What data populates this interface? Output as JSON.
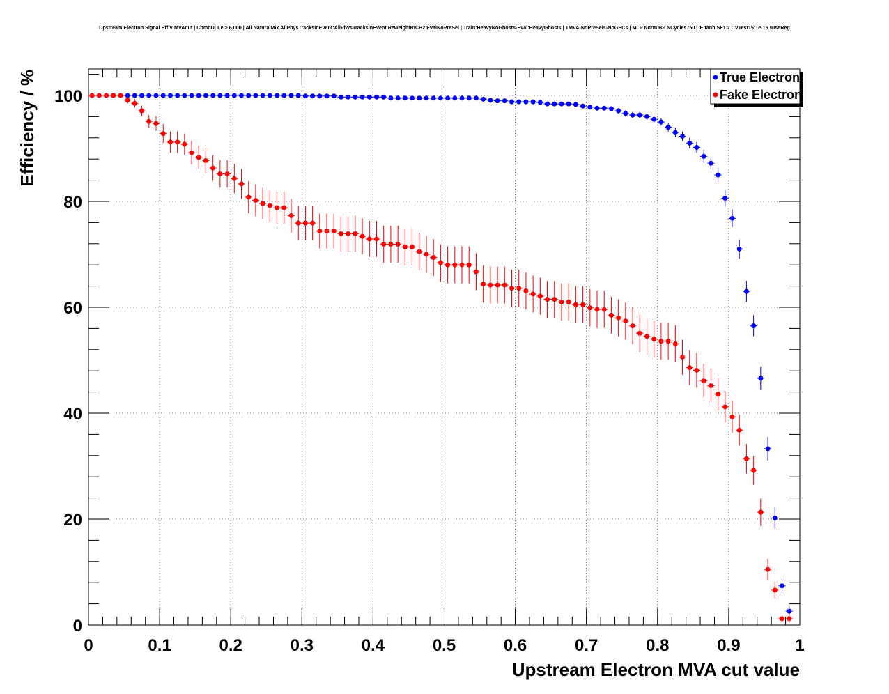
{
  "chart_data": {
    "type": "scatter",
    "title": "Upstream Electron Signal Eff V MVAcut | CombDLLe > 6.000 | All NaturalMix AllPhysTracksInEvent:AllPhysTracksInEvent ReweightRICH2 EvalNoPreSel | Train:HeavyNoGhosts-Eval:HeavyGhosts | TMVA-NoPreSels-NoGECs | MLP Norm BP NCycles750 CE tanh SF1.2 CVTest15:1e-16 !UseReg",
    "xlabel": "Upstream Electron MVA cut value",
    "ylabel": "Efficiency / %",
    "xlim": [
      0,
      1
    ],
    "ylim": [
      0,
      105
    ],
    "grid": true,
    "legend_position": "top-right",
    "x_ticks": [
      "0",
      "0.1",
      "0.2",
      "0.3",
      "0.4",
      "0.5",
      "0.6",
      "0.7",
      "0.8",
      "0.9",
      "1"
    ],
    "y_ticks": [
      "0",
      "20",
      "40",
      "60",
      "80",
      "100"
    ],
    "x_bin_start": 0.005,
    "x_bin_step": 0.01,
    "series": [
      {
        "name": "True Electron",
        "color": "#0000ff",
        "values": [
          100,
          100,
          100,
          100,
          100,
          100,
          100,
          100,
          100,
          100,
          100,
          100,
          100,
          100,
          100,
          100,
          100,
          100,
          100,
          100,
          100,
          100,
          100,
          100,
          100,
          100,
          100,
          100,
          100,
          100,
          99.9,
          99.9,
          99.9,
          99.9,
          99.9,
          99.7,
          99.7,
          99.7,
          99.7,
          99.7,
          99.7,
          99.7,
          99.5,
          99.5,
          99.5,
          99.5,
          99.5,
          99.5,
          99.5,
          99.5,
          99.5,
          99.5,
          99.5,
          99.5,
          99.5,
          99.3,
          99.1,
          99.0,
          99.0,
          98.8,
          98.8,
          98.8,
          98.8,
          98.7,
          98.4,
          98.4,
          98.4,
          98.4,
          98.3,
          98.0,
          97.8,
          97.6,
          97.6,
          97.5,
          97.1,
          96.6,
          96.3,
          96.3,
          96.0,
          95.5,
          95.0,
          94.0,
          93.0,
          92.3,
          91.0,
          90.2,
          88.5,
          87.2,
          85.0,
          80.6,
          76.8,
          71.0,
          63.0,
          56.5,
          46.6,
          33.3,
          20.2,
          7.4,
          2.6
        ],
        "errors": [
          0,
          0,
          0,
          0,
          0,
          0.2,
          0.2,
          0.2,
          0.2,
          0.2,
          0.2,
          0.2,
          0.2,
          0.2,
          0.2,
          0.2,
          0.2,
          0.2,
          0.2,
          0.2,
          0.2,
          0.2,
          0.2,
          0.2,
          0.2,
          0.2,
          0.2,
          0.2,
          0.2,
          0.2,
          0.2,
          0.2,
          0.2,
          0.2,
          0.2,
          0.2,
          0.2,
          0.2,
          0.2,
          0.2,
          0.2,
          0.2,
          0.2,
          0.2,
          0.2,
          0.2,
          0.2,
          0.2,
          0.2,
          0.2,
          0.2,
          0.2,
          0.2,
          0.2,
          0.2,
          0.3,
          0.3,
          0.3,
          0.3,
          0.3,
          0.3,
          0.3,
          0.3,
          0.3,
          0.4,
          0.4,
          0.4,
          0.4,
          0.4,
          0.4,
          0.4,
          0.4,
          0.4,
          0.4,
          0.5,
          0.6,
          0.6,
          0.6,
          0.6,
          0.7,
          0.7,
          0.8,
          0.9,
          0.9,
          1.0,
          1.0,
          1.2,
          1.2,
          1.4,
          1.6,
          1.7,
          1.8,
          2.0,
          2.0,
          2.2,
          2.2,
          2.0,
          1.4,
          0.9
        ]
      },
      {
        "name": "Fake Electron",
        "color": "#ff0000",
        "values": [
          100,
          100,
          100,
          100,
          100,
          99.1,
          98.5,
          97.1,
          95.1,
          94.7,
          92.8,
          91.2,
          91.2,
          90.8,
          89.2,
          88.3,
          87.7,
          86.3,
          85.2,
          85.2,
          84.3,
          83.3,
          80.8,
          80.2,
          79.6,
          79.2,
          78.8,
          78.8,
          77.3,
          75.9,
          75.9,
          75.9,
          74.4,
          74.4,
          74.4,
          73.9,
          73.9,
          73.9,
          73.4,
          72.9,
          72.9,
          71.9,
          71.9,
          71.9,
          71.4,
          71.4,
          70.5,
          70.0,
          69.4,
          68.4,
          68.0,
          68.0,
          68.0,
          68.0,
          66.7,
          64.4,
          64.2,
          64.2,
          64.2,
          63.6,
          63.6,
          63.1,
          62.5,
          62.1,
          61.5,
          61.5,
          61.0,
          61.0,
          60.5,
          60.5,
          59.9,
          59.6,
          59.6,
          58.5,
          58.0,
          57.4,
          56.5,
          55.1,
          54.5,
          54.0,
          53.6,
          53.6,
          53.1,
          50.6,
          48.6,
          48.1,
          46.1,
          45.2,
          43.6,
          41.2,
          39.3,
          36.8,
          31.4,
          29.2,
          21.3,
          10.5,
          6.6,
          1.2,
          1.2
        ],
        "errors": [
          0,
          0,
          0,
          0,
          0,
          0.6,
          0.8,
          1.0,
          1.2,
          1.4,
          1.8,
          2.0,
          2.0,
          2.0,
          2.2,
          2.2,
          2.4,
          2.4,
          2.6,
          2.6,
          2.8,
          2.8,
          3.0,
          3.0,
          3.0,
          3.0,
          3.0,
          3.0,
          3.2,
          3.2,
          3.2,
          3.2,
          3.3,
          3.3,
          3.3,
          3.4,
          3.4,
          3.4,
          3.4,
          3.4,
          3.4,
          3.5,
          3.5,
          3.5,
          3.5,
          3.5,
          3.5,
          3.5,
          3.5,
          3.5,
          3.5,
          3.5,
          3.5,
          3.5,
          3.5,
          3.5,
          3.5,
          3.5,
          3.5,
          3.5,
          3.5,
          3.5,
          3.5,
          3.5,
          3.5,
          3.5,
          3.5,
          3.5,
          3.5,
          3.5,
          3.5,
          3.5,
          3.5,
          3.5,
          3.5,
          3.5,
          3.5,
          3.5,
          3.5,
          3.5,
          3.5,
          3.5,
          3.5,
          3.3,
          3.3,
          3.3,
          3.2,
          3.2,
          3.1,
          3.0,
          3.0,
          2.9,
          2.8,
          2.7,
          2.6,
          2.0,
          1.6,
          0.8,
          0.8
        ]
      }
    ]
  }
}
